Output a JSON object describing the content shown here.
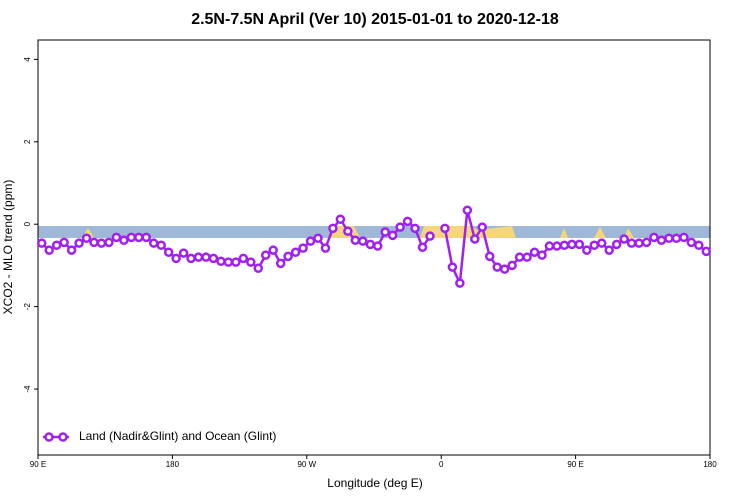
{
  "chart_data": {
    "type": "line",
    "title": "2.5N-7.5N April (Ver 10)   2015-01-01 to 2020-12-18",
    "x_label": "Longitude (deg E)",
    "y_label": "XCO2 - MLO trend (ppm)",
    "xlim": [
      90,
      540
    ],
    "ylim": [
      -5.6,
      4.47
    ],
    "xticks": [
      {
        "value": 90,
        "label": "90 E"
      },
      180,
      {
        "value": 270,
        "label": "90 W"
      },
      {
        "value": 360,
        "label": "0"
      },
      {
        "value": 450,
        "label": "90 E"
      },
      {
        "value": 540,
        "label": "180"
      }
    ],
    "yticks": [
      -4,
      -2,
      0,
      2,
      4
    ],
    "legend_position": "bottom-left",
    "x": [
      92.5,
      97.5,
      102.5,
      107.5,
      112.5,
      117.5,
      122.5,
      127.5,
      132.5,
      137.5,
      142.5,
      147.5,
      152.5,
      157.5,
      162.5,
      167.5,
      172.5,
      177.5,
      182.5,
      187.5,
      192.5,
      197.5,
      202.5,
      207.5,
      212.5,
      217.5,
      222.5,
      227.5,
      232.5,
      237.5,
      242.5,
      247.5,
      252.5,
      257.5,
      262.5,
      267.5,
      272.5,
      277.5,
      282.5,
      287.5,
      292.5,
      297.5,
      302.5,
      307.5,
      312.5,
      317.5,
      322.5,
      327.5,
      332.5,
      337.5,
      342.5,
      347.5,
      352.5,
      357.5,
      362.5,
      367.5,
      372.5,
      377.5,
      382.5,
      387.5,
      392.5,
      397.5,
      402.5,
      407.5,
      412.5,
      417.5,
      422.5,
      427.5,
      432.5,
      437.5,
      442.5,
      447.5,
      452.5,
      457.5,
      462.5,
      467.5,
      472.5,
      477.5,
      482.5,
      487.5,
      492.5,
      497.5,
      502.5,
      507.5,
      512.5,
      517.5,
      522.5,
      527.5,
      532.5,
      537.5
    ],
    "series": [
      {
        "name": "Land (Nadir&Glint) and Ocean (Glint)",
        "color": "#a020f0",
        "values": [
          -0.46,
          -0.63,
          -0.51,
          -0.44,
          -0.63,
          -0.46,
          -0.34,
          -0.44,
          -0.46,
          -0.44,
          -0.32,
          -0.39,
          -0.32,
          -0.32,
          -0.32,
          -0.46,
          -0.51,
          -0.68,
          -0.83,
          -0.7,
          -0.83,
          -0.8,
          -0.8,
          -0.83,
          -0.9,
          -0.92,
          -0.92,
          -0.83,
          -0.92,
          -1.07,
          -0.75,
          -0.63,
          -0.95,
          -0.78,
          -0.68,
          -0.58,
          -0.41,
          -0.34,
          -0.58,
          -0.1,
          0.12,
          -0.17,
          -0.39,
          -0.41,
          -0.49,
          -0.53,
          -0.19,
          -0.27,
          -0.07,
          0.07,
          -0.1,
          -0.56,
          -0.29,
          null,
          -0.1,
          -1.04,
          -1.43,
          0.34,
          -0.36,
          -0.07,
          -0.78,
          -1.04,
          -1.09,
          -1.0,
          -0.8,
          -0.8,
          -0.68,
          -0.75,
          -0.53,
          -0.53,
          -0.51,
          -0.49,
          -0.49,
          -0.63,
          -0.51,
          -0.46,
          -0.63,
          -0.49,
          -0.36,
          -0.46,
          -0.46,
          -0.44,
          -0.32,
          -0.39,
          -0.34,
          -0.34,
          -0.32,
          -0.44,
          -0.51,
          -0.66
        ]
      }
    ]
  }
}
